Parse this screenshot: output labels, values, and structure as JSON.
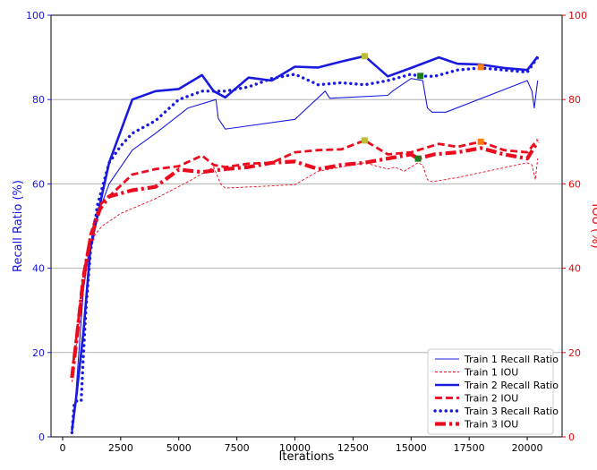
{
  "chart_data": {
    "type": "line",
    "xlabel": "Iterations",
    "ylabel_left": "Recall Ratio (%)",
    "ylabel_right": "IOU (%)",
    "xlim": [
      -500,
      21500
    ],
    "ylim_left": [
      0,
      100
    ],
    "ylim_right": [
      0,
      100
    ],
    "x_ticks": [
      0,
      2500,
      5000,
      7500,
      10000,
      12500,
      15000,
      17500,
      20000
    ],
    "x_tick_labels": [
      "0",
      "2500",
      "5000",
      "7500",
      "10000",
      "12500",
      "15000",
      "17500",
      "20000"
    ],
    "y_ticks_left": [
      0,
      20,
      40,
      60,
      80,
      100
    ],
    "y_tick_labels_left": [
      "0",
      "20",
      "40",
      "60",
      "80",
      "100"
    ],
    "y_ticks_right": [
      0,
      20,
      40,
      60,
      80,
      100
    ],
    "y_tick_labels_right": [
      "0",
      "20",
      "40",
      "60",
      "80",
      "100"
    ],
    "grid": "horizontal",
    "legend_position": "bottom-right",
    "colors": {
      "left_axis": "#1515e0",
      "right_axis": "#e50a0a",
      "recall": "#1a1adf",
      "iou": "#ec0a1e"
    },
    "series": [
      {
        "name": "Train 1 Recall Ratio",
        "axis": "left",
        "style": "thin-solid",
        "x": [
          400,
          500,
          700,
          900,
          1100,
          1300,
          1600,
          2000,
          3000,
          4000,
          5400,
          6600,
          6700,
          7000,
          10000,
          11300,
          11500,
          14000,
          14200,
          15000,
          15500,
          15700,
          15900,
          16500,
          20000,
          20200,
          20300,
          20450
        ],
        "y": [
          1,
          5,
          20,
          35,
          43,
          47,
          54,
          60,
          68,
          72,
          78,
          80,
          75.5,
          73,
          75.3,
          82,
          80.3,
          81,
          82,
          85,
          84.5,
          78,
          77,
          77,
          84.5,
          82,
          78,
          84.5
        ]
      },
      {
        "name": "Train 1  IOU",
        "axis": "right",
        "style": "thin-dashed",
        "x": [
          400,
          600,
          900,
          1100,
          1400,
          1700,
          2500,
          4000,
          5500,
          6500,
          6800,
          7000,
          10000,
          11000,
          12500,
          13000,
          14000,
          14300,
          14700,
          15300,
          15500,
          15700,
          15900,
          17000,
          20000,
          20200,
          20350,
          20450
        ],
        "y": [
          13,
          22,
          35,
          42,
          48,
          50,
          53,
          56.5,
          60.8,
          64,
          60,
          59,
          59.8,
          63,
          64.5,
          65,
          63.5,
          64,
          63,
          65,
          64.5,
          61,
          60.5,
          61.5,
          65,
          64.5,
          61,
          66
        ]
      },
      {
        "name": "Train 2 Recall Ratio",
        "axis": "left",
        "style": "thick-solid",
        "x": [
          400,
          600,
          900,
          1200,
          1600,
          2000,
          3000,
          4000,
          5000,
          6000,
          6500,
          7000,
          8000,
          9000,
          10000,
          11000,
          12000,
          13000,
          14000,
          15000,
          16200,
          17000,
          18000,
          19000,
          20000,
          20450
        ],
        "y": [
          1.5,
          10,
          25,
          45,
          55,
          65,
          80,
          82,
          82.5,
          85.8,
          82,
          80.5,
          85.2,
          84.5,
          87.8,
          87.6,
          89,
          90.3,
          85.5,
          87.5,
          90,
          88.5,
          88.3,
          87.5,
          87,
          90.2
        ]
      },
      {
        "name": "Train 2  IOU",
        "axis": "right",
        "style": "thick-dashed",
        "x": [
          400,
          600,
          900,
          1200,
          1600,
          2000,
          3000,
          4000,
          5000,
          6000,
          6500,
          7000,
          8000,
          9000,
          10000,
          11000,
          12000,
          13000,
          14000,
          15000,
          16200,
          17000,
          18000,
          19000,
          20000,
          20450
        ],
        "y": [
          15,
          24,
          38,
          48,
          55,
          57,
          62.2,
          63.5,
          64.2,
          66.7,
          64.5,
          64,
          64.8,
          65,
          67.5,
          68,
          68.2,
          70.3,
          67,
          67.5,
          69.5,
          68.8,
          70,
          68,
          67.5,
          70.5
        ]
      },
      {
        "name": "Train 3 Recall Ratio",
        "axis": "left",
        "style": "thick-dotted",
        "x": [
          400,
          500,
          600,
          700,
          800,
          900,
          1000,
          1200,
          1500,
          2000,
          2500,
          3000,
          4000,
          5000,
          6000,
          7000,
          8000,
          9000,
          10000,
          11000,
          12000,
          13000,
          14000,
          15000,
          15300,
          16000,
          17000,
          18000,
          19000,
          20000,
          20450
        ],
        "y": [
          1,
          8,
          8.5,
          8.5,
          8.5,
          20,
          30,
          44,
          55,
          65,
          69,
          72,
          75,
          80,
          82,
          82,
          83,
          85,
          86,
          83.5,
          84,
          83.5,
          84.5,
          86,
          85.6,
          85.5,
          87,
          87.5,
          87,
          86.5,
          90
        ]
      },
      {
        "name": "Train 3  IOU",
        "axis": "right",
        "style": "thick-dashdot",
        "x": [
          400,
          600,
          900,
          1200,
          1600,
          2000,
          3000,
          4000,
          5000,
          6000,
          7000,
          8000,
          9000,
          10000,
          11000,
          12000,
          13000,
          14000,
          15000,
          15300,
          16000,
          17000,
          18000,
          19000,
          20000,
          20450
        ],
        "y": [
          14,
          23,
          38,
          47,
          54,
          57,
          58.5,
          59.3,
          63.4,
          62.8,
          63.5,
          64,
          65,
          65.3,
          63.5,
          64.5,
          65,
          66,
          67,
          66,
          67,
          67.5,
          68.5,
          67,
          66,
          70
        ]
      }
    ],
    "markers": [
      {
        "axis": "left",
        "x": 13000,
        "y": 90.3,
        "color": "#bdbd3a"
      },
      {
        "axis": "right",
        "x": 13000,
        "y": 70.3,
        "color": "#bdbd3a"
      },
      {
        "axis": "left",
        "x": 15400,
        "y": 85.6,
        "color": "#1f7a1f"
      },
      {
        "axis": "right",
        "x": 15300,
        "y": 66,
        "color": "#1f7a1f"
      },
      {
        "axis": "left",
        "x": 18000,
        "y": 87.7,
        "color": "#ff7f0e"
      },
      {
        "axis": "right",
        "x": 18000,
        "y": 70,
        "color": "#ff7f0e"
      }
    ]
  }
}
